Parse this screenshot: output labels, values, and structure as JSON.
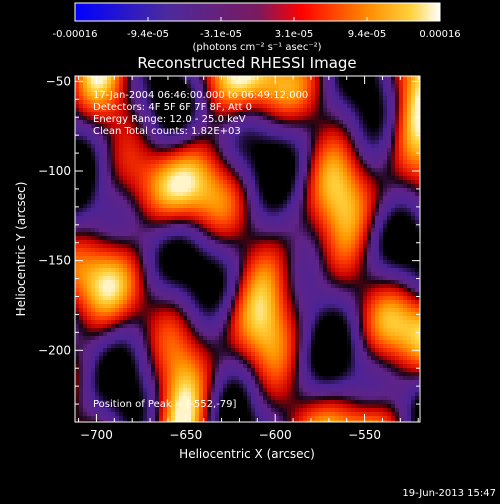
{
  "colorbar": {
    "tick_labels": [
      "-0.00016",
      "-9.4e-05",
      "-3.1e-05",
      "3.1e-05",
      "9.4e-05",
      "0.00016"
    ],
    "unit_label": "(photons cm⁻² s⁻¹ asec⁻²)",
    "colors": [
      "#0000ff",
      "#5a2aa8",
      "#ff0000",
      "#ffb000",
      "#ffffff"
    ]
  },
  "chart_data": {
    "type": "heatmap",
    "title": "Reconstructed RHESSI Image",
    "xlabel": "Heliocentric X (arcsec)",
    "ylabel": "Heliocentric Y (arcsec)",
    "xlim": [
      -712,
      -519
    ],
    "ylim": [
      -240,
      -47
    ],
    "xticks": [
      -700,
      -650,
      -600,
      -550
    ],
    "yticks": [
      -200,
      -150,
      -100,
      -50
    ],
    "annotations": [
      "17-Jan-2004 06:46:00.000 to 06:49:12.000",
      "Detectors: 4F 5F 6F 7F 8F, Att 0",
      "Energy Range: 12.0 - 25.0 keV",
      "Clean    Total counts: 1.82E+03"
    ],
    "peak_label": "Position of Peak = [-552,-79]",
    "peak": [
      -552,
      -79
    ]
  },
  "footer": {
    "timestamp": "19-Jun-2013 15:47"
  }
}
